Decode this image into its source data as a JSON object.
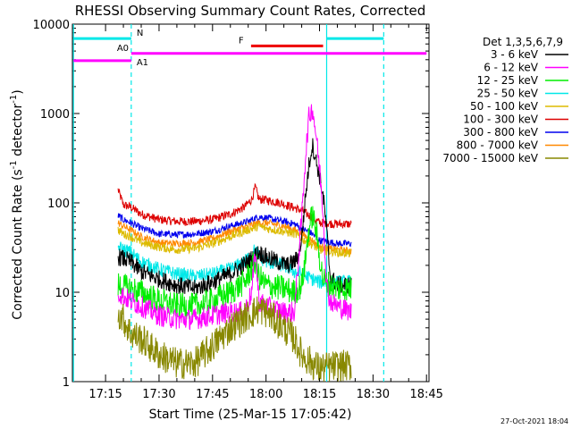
{
  "chart_data": {
    "type": "line",
    "title": "RHESSI Observing Summary Count Rates, Corrected",
    "xlabel": "Start Time (25-Mar-15 17:05:42)",
    "ylabel_main": "Corrected Count Rate (s",
    "ylabel_sup1": "-1",
    "ylabel_mid": " detector",
    "ylabel_sup2": "-1",
    "ylabel_end": ")",
    "yscale": "log",
    "ylim": [
      1,
      10000
    ],
    "xlim_minutes": [
      1025.7,
      1125.7
    ],
    "x_ticks": [
      "17:15",
      "17:30",
      "17:45",
      "18:00",
      "18:15",
      "18:30",
      "18:45"
    ],
    "y_ticks": [
      "1",
      "10",
      "100",
      "1000",
      "10000"
    ],
    "footer": "27-Oct-2021 18:04",
    "legend": {
      "title": "Det 1,3,5,6,7,9",
      "placement": "right",
      "entries": [
        {
          "label": "3 - 6 keV",
          "color": "#000000"
        },
        {
          "label": "6 - 12 keV",
          "color": "#ff00ff"
        },
        {
          "label": "12 - 25 keV",
          "color": "#00ee00"
        },
        {
          "label": "25 - 50 keV",
          "color": "#00e8e8"
        },
        {
          "label": "50 - 100 keV",
          "color": "#ddbb00"
        },
        {
          "label": "100 - 300 keV",
          "color": "#dd0000"
        },
        {
          "label": "300 - 800 keV",
          "color": "#0000ee"
        },
        {
          "label": "800 - 7000 keV",
          "color": "#ff8800"
        },
        {
          "label": "7000 - 15000 keV",
          "color": "#888800"
        }
      ]
    },
    "flags": [
      {
        "label": "N",
        "color": "#00e8e8",
        "segments": [
          [
            1026,
            1042.2
          ],
          [
            1097,
            1113
          ]
        ]
      },
      {
        "label": "A0",
        "color": "#ff00ff",
        "segments": [
          [
            1042.2,
            1125
          ]
        ]
      },
      {
        "label": "A1",
        "color": "#ff00ff",
        "segments": [
          [
            1026,
            1042.2
          ]
        ]
      },
      {
        "label": "F",
        "color": "#ee0000",
        "segments": [
          [
            1075.8,
            1096
          ]
        ]
      }
    ],
    "night_boundaries_minutes": [
      1026,
      1042.2,
      1097,
      1113
    ],
    "series": [
      {
        "label_ref": 5,
        "color": "#dd0000",
        "noise": 0.05,
        "points": [
          [
            1038.5,
            140
          ],
          [
            1040,
            95
          ],
          [
            1042,
            90
          ],
          [
            1045,
            75
          ],
          [
            1050,
            65
          ],
          [
            1055,
            62
          ],
          [
            1060,
            62
          ],
          [
            1065,
            65
          ],
          [
            1070,
            75
          ],
          [
            1074,
            90
          ],
          [
            1076,
            110
          ],
          [
            1077,
            150
          ],
          [
            1078,
            110
          ],
          [
            1080,
            108
          ],
          [
            1084,
            100
          ],
          [
            1088,
            88
          ],
          [
            1090,
            82
          ],
          [
            1093,
            68
          ],
          [
            1095,
            60
          ],
          [
            1100,
            58
          ],
          [
            1104,
            58
          ]
        ]
      },
      {
        "label_ref": 6,
        "color": "#0000ee",
        "noise": 0.04,
        "points": [
          [
            1038.5,
            72
          ],
          [
            1040,
            65
          ],
          [
            1042,
            60
          ],
          [
            1045,
            52
          ],
          [
            1050,
            45
          ],
          [
            1055,
            44
          ],
          [
            1060,
            45
          ],
          [
            1065,
            48
          ],
          [
            1070,
            55
          ],
          [
            1075,
            62
          ],
          [
            1078,
            70
          ],
          [
            1080,
            68
          ],
          [
            1085,
            62
          ],
          [
            1088,
            58
          ],
          [
            1090,
            52
          ],
          [
            1093,
            45
          ],
          [
            1095,
            38
          ],
          [
            1100,
            35
          ],
          [
            1104,
            35
          ]
        ]
      },
      {
        "label_ref": 7,
        "color": "#ff8800",
        "noise": 0.04,
        "points": [
          [
            1038.5,
            60
          ],
          [
            1040,
            55
          ],
          [
            1042,
            50
          ],
          [
            1045,
            42
          ],
          [
            1050,
            36
          ],
          [
            1055,
            35
          ],
          [
            1060,
            36
          ],
          [
            1065,
            40
          ],
          [
            1070,
            48
          ],
          [
            1075,
            55
          ],
          [
            1078,
            60
          ],
          [
            1080,
            60
          ],
          [
            1085,
            55
          ],
          [
            1088,
            50
          ],
          [
            1090,
            45
          ],
          [
            1093,
            38
          ],
          [
            1095,
            32
          ],
          [
            1100,
            30
          ],
          [
            1104,
            29
          ]
        ]
      },
      {
        "label_ref": 4,
        "color": "#ddbb00",
        "noise": 0.05,
        "points": [
          [
            1038.5,
            50
          ],
          [
            1040,
            45
          ],
          [
            1042,
            42
          ],
          [
            1045,
            36
          ],
          [
            1050,
            32
          ],
          [
            1055,
            30
          ],
          [
            1060,
            31
          ],
          [
            1065,
            35
          ],
          [
            1070,
            42
          ],
          [
            1075,
            50
          ],
          [
            1078,
            55
          ],
          [
            1080,
            52
          ],
          [
            1085,
            48
          ],
          [
            1088,
            45
          ],
          [
            1090,
            40
          ],
          [
            1093,
            34
          ],
          [
            1095,
            30
          ],
          [
            1100,
            28
          ],
          [
            1104,
            27
          ]
        ]
      },
      {
        "label_ref": 3,
        "color": "#00e8e8",
        "noise": 0.08,
        "points": [
          [
            1038.5,
            32
          ],
          [
            1042,
            28
          ],
          [
            1045,
            22
          ],
          [
            1050,
            18
          ],
          [
            1055,
            16
          ],
          [
            1060,
            15
          ],
          [
            1065,
            16
          ],
          [
            1070,
            18
          ],
          [
            1074,
            22
          ],
          [
            1077,
            30
          ],
          [
            1078,
            25
          ],
          [
            1080,
            22
          ],
          [
            1085,
            20
          ],
          [
            1088,
            17
          ],
          [
            1090,
            16
          ],
          [
            1093,
            14
          ],
          [
            1095,
            13
          ],
          [
            1100,
            13
          ],
          [
            1104,
            13
          ]
        ]
      },
      {
        "label_ref": 0,
        "color": "#000000",
        "noise": 0.1,
        "points": [
          [
            1038.5,
            25
          ],
          [
            1042,
            22
          ],
          [
            1045,
            17
          ],
          [
            1050,
            14
          ],
          [
            1055,
            12
          ],
          [
            1060,
            11
          ],
          [
            1065,
            13
          ],
          [
            1070,
            16
          ],
          [
            1075,
            22
          ],
          [
            1078,
            28
          ],
          [
            1080,
            25
          ],
          [
            1083,
            22
          ],
          [
            1086,
            20
          ],
          [
            1088,
            22
          ],
          [
            1089,
            25
          ],
          [
            1090,
            40
          ],
          [
            1091,
            110
          ],
          [
            1092,
            260
          ],
          [
            1093,
            450
          ],
          [
            1094,
            300
          ],
          [
            1095,
            200
          ],
          [
            1096,
            120
          ],
          [
            1097,
            50
          ],
          [
            1098,
            15
          ],
          [
            1100,
            12
          ],
          [
            1104,
            12
          ]
        ]
      },
      {
        "label_ref": 2,
        "color": "#00ee00",
        "noise": 0.15,
        "points": [
          [
            1038.5,
            12
          ],
          [
            1042,
            11
          ],
          [
            1045,
            10
          ],
          [
            1050,
            8
          ],
          [
            1055,
            7
          ],
          [
            1060,
            7
          ],
          [
            1065,
            8
          ],
          [
            1070,
            10
          ],
          [
            1074,
            13
          ],
          [
            1077,
            22
          ],
          [
            1078,
            15
          ],
          [
            1080,
            12
          ],
          [
            1085,
            11
          ],
          [
            1088,
            10
          ],
          [
            1090,
            12
          ],
          [
            1091,
            22
          ],
          [
            1092,
            50
          ],
          [
            1093,
            75
          ],
          [
            1094,
            50
          ],
          [
            1095,
            25
          ],
          [
            1096,
            14
          ],
          [
            1098,
            12
          ],
          [
            1100,
            11
          ],
          [
            1104,
            11
          ]
        ]
      },
      {
        "label_ref": 1,
        "color": "#ff00ff",
        "noise": 0.12,
        "points": [
          [
            1038.5,
            10
          ],
          [
            1040,
            9
          ],
          [
            1042,
            8
          ],
          [
            1045,
            7
          ],
          [
            1050,
            5.5
          ],
          [
            1055,
            5
          ],
          [
            1060,
            5
          ],
          [
            1065,
            5.5
          ],
          [
            1070,
            6
          ],
          [
            1074,
            6
          ],
          [
            1076,
            10
          ],
          [
            1077,
            30
          ],
          [
            1078,
            8
          ],
          [
            1080,
            7
          ],
          [
            1085,
            6
          ],
          [
            1088,
            6
          ],
          [
            1090,
            70
          ],
          [
            1091,
            300
          ],
          [
            1092,
            900
          ],
          [
            1093,
            1150
          ],
          [
            1094,
            600
          ],
          [
            1095,
            250
          ],
          [
            1096,
            80
          ],
          [
            1097,
            12
          ],
          [
            1098,
            8
          ],
          [
            1100,
            7
          ],
          [
            1104,
            6
          ]
        ]
      },
      {
        "label_ref": 8,
        "color": "#888800",
        "noise": 0.18,
        "points": [
          [
            1038.5,
            6
          ],
          [
            1040,
            5
          ],
          [
            1042,
            3.5
          ],
          [
            1045,
            3
          ],
          [
            1050,
            2
          ],
          [
            1055,
            1.6
          ],
          [
            1060,
            1.6
          ],
          [
            1065,
            2.5
          ],
          [
            1070,
            4
          ],
          [
            1075,
            5.5
          ],
          [
            1078,
            6.5
          ],
          [
            1080,
            6
          ],
          [
            1085,
            4
          ],
          [
            1088,
            3
          ],
          [
            1090,
            2
          ],
          [
            1093,
            1.6
          ],
          [
            1095,
            1.4
          ],
          [
            1100,
            1.5
          ],
          [
            1104,
            1.5
          ]
        ]
      }
    ]
  }
}
